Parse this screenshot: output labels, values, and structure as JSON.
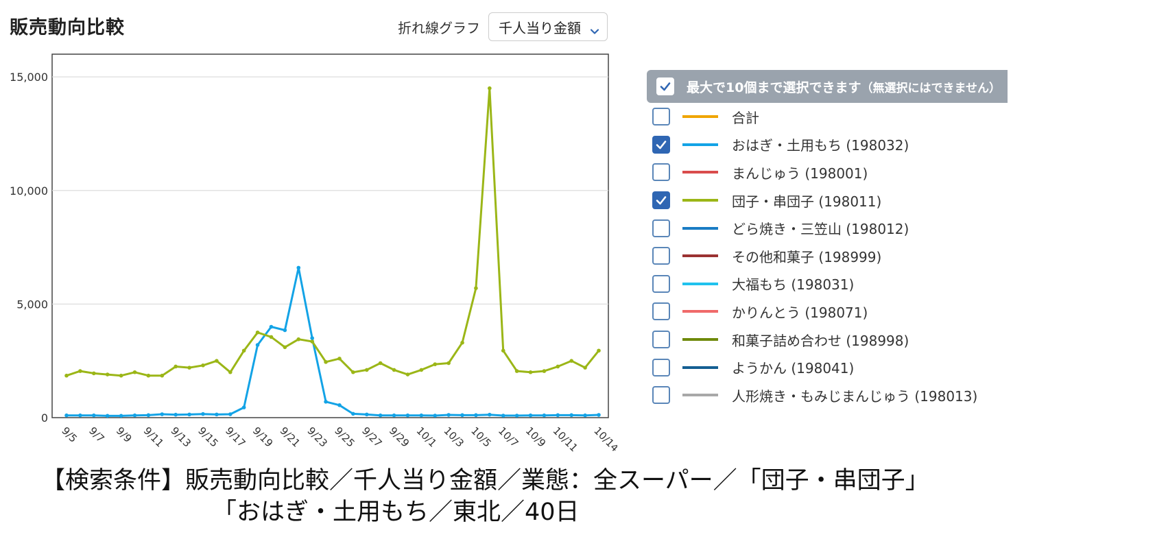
{
  "header": {
    "title": "販売動向比較",
    "graph_type_label": "折れ線グラフ",
    "metric_selected": "千人当り金額"
  },
  "legend": {
    "header_text": "最大で10個まで選択できます",
    "header_note": "（無選択にはできません）",
    "items": [
      {
        "label": "合計",
        "color": "#f0a500",
        "checked": false
      },
      {
        "label": "おはぎ・土用もち (198032)",
        "color": "#13a3e6",
        "checked": true
      },
      {
        "label": "まんじゅう (198001)",
        "color": "#d94c4c",
        "checked": false
      },
      {
        "label": "団子・串団子 (198011)",
        "color": "#9bb617",
        "checked": true
      },
      {
        "label": "どら焼き・三笠山 (198012)",
        "color": "#1a7cc4",
        "checked": false
      },
      {
        "label": "その他和菓子 (198999)",
        "color": "#9b3232",
        "checked": false
      },
      {
        "label": "大福もち (198031)",
        "color": "#20c2ee",
        "checked": false
      },
      {
        "label": "かりんとう (198071)",
        "color": "#f06a6a",
        "checked": false
      },
      {
        "label": "和菓子詰め合わせ (198998)",
        "color": "#6f8a0b",
        "checked": false
      },
      {
        "label": "ようかん (198041)",
        "color": "#155f92",
        "checked": false
      },
      {
        "label": "人形焼き・もみじまんじゅう (198013)",
        "color": "#a8a8a8",
        "checked": false
      }
    ]
  },
  "chart_data": {
    "type": "line",
    "x": [
      "9/5",
      "9/6",
      "9/7",
      "9/8",
      "9/9",
      "9/10",
      "9/11",
      "9/12",
      "9/13",
      "9/14",
      "9/15",
      "9/16",
      "9/17",
      "9/18",
      "9/19",
      "9/20",
      "9/21",
      "9/22",
      "9/23",
      "9/24",
      "9/25",
      "9/26",
      "9/27",
      "9/28",
      "9/29",
      "9/30",
      "10/1",
      "10/2",
      "10/3",
      "10/4",
      "10/5",
      "10/6",
      "10/7",
      "10/8",
      "10/9",
      "10/10",
      "10/11",
      "10/12",
      "10/13",
      "10/14"
    ],
    "x_tick_labels": [
      "9/5",
      "9/7",
      "9/9",
      "9/11",
      "9/13",
      "9/15",
      "9/17",
      "9/19",
      "9/21",
      "9/23",
      "9/25",
      "9/27",
      "9/29",
      "10/1",
      "10/3",
      "10/5",
      "10/7",
      "10/9",
      "10/11",
      "10/14"
    ],
    "series": [
      {
        "name": "おはぎ・土用もち (198032)",
        "color": "#13a3e6",
        "values": [
          100,
          100,
          100,
          80,
          80,
          100,
          110,
          150,
          130,
          140,
          160,
          140,
          150,
          450,
          3200,
          4000,
          3850,
          6600,
          3500,
          700,
          550,
          170,
          140,
          100,
          100,
          100,
          100,
          90,
          120,
          110,
          110,
          130,
          90,
          90,
          100,
          100,
          110,
          110,
          100,
          120
        ]
      },
      {
        "name": "団子・串団子 (198011)",
        "color": "#9bb617",
        "values": [
          1850,
          2050,
          1950,
          1900,
          1850,
          2000,
          1850,
          1850,
          2250,
          2200,
          2300,
          2500,
          2000,
          2950,
          3750,
          3550,
          3100,
          3450,
          3350,
          2450,
          2600,
          2000,
          2100,
          2400,
          2100,
          1900,
          2100,
          2350,
          2400,
          3300,
          5700,
          14500,
          2950,
          2050,
          2000,
          2050,
          2250,
          2500,
          2200,
          2950
        ]
      }
    ],
    "ylim": [
      0,
      16000
    ],
    "yticks": [
      0,
      5000,
      10000,
      15000
    ],
    "ytick_labels": [
      "0",
      "5,000",
      "10,000",
      "15,000"
    ],
    "grid": true,
    "legend_placement": "right"
  },
  "caption": {
    "line1": "【検索条件】販売動向比較／千人当り金額／業態：全スーパー／「団子・串団子」",
    "line2": "「おはぎ・土用もち／東北／40日"
  }
}
